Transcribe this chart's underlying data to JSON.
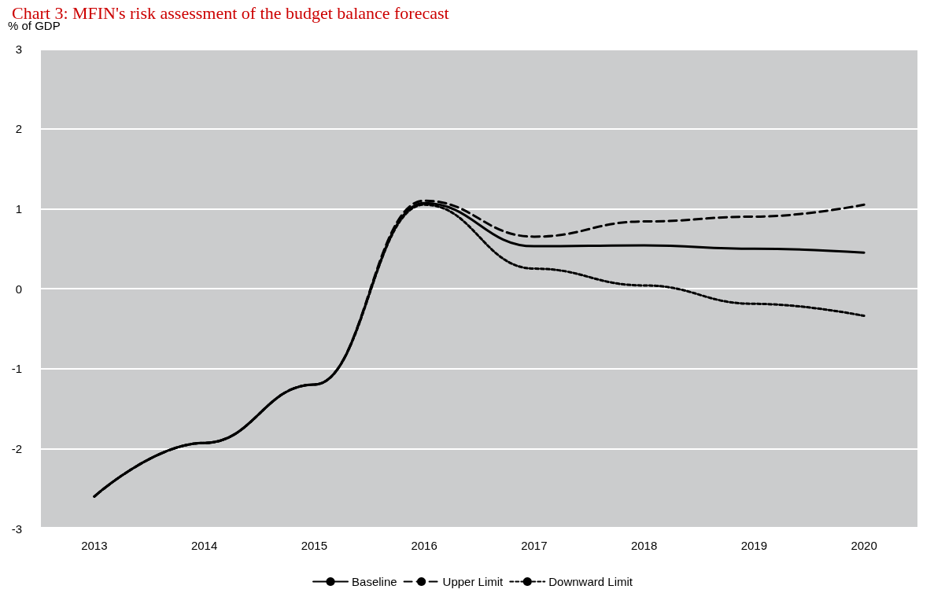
{
  "chart_data": {
    "type": "line",
    "title": "Chart 3: MFIN's risk assessment of the budget balance forecast",
    "ylabel": "% of GDP",
    "categories": [
      "2013",
      "2014",
      "2015",
      "2016",
      "2017",
      "2018",
      "2019",
      "2020"
    ],
    "series": [
      {
        "name": "Baseline",
        "color": "#000000",
        "line_style": "solid",
        "values": [
          -2.6,
          -1.93,
          -1.2,
          1.07,
          0.53,
          0.54,
          0.5,
          0.45
        ]
      },
      {
        "name": "Upper Limit",
        "color": "#000000",
        "line_style": "dashed",
        "values": [
          -2.6,
          -1.93,
          -1.2,
          1.1,
          0.65,
          0.84,
          0.9,
          1.05
        ]
      },
      {
        "name": "Downward Limit",
        "color": "#000000",
        "line_style": "dotted",
        "values": [
          -2.6,
          -1.93,
          -1.2,
          1.05,
          0.25,
          0.04,
          -0.19,
          -0.34
        ]
      }
    ],
    "ylim": [
      -3,
      3
    ],
    "yticks": [
      -3,
      -2,
      -1,
      0,
      1,
      2,
      3
    ],
    "grid": "y",
    "legend": "bottom",
    "marker": "none"
  }
}
